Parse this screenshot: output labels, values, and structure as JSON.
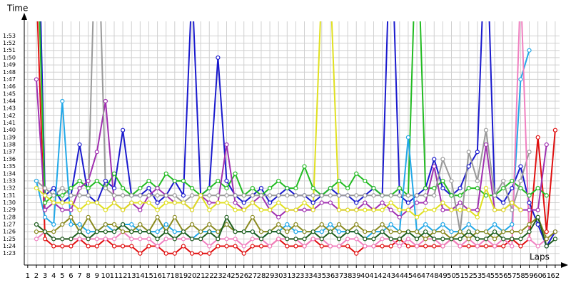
{
  "chart_data": {
    "type": "line",
    "y_label": "Time",
    "x_label": "Laps",
    "x": [
      1,
      2,
      3,
      4,
      5,
      6,
      7,
      8,
      9,
      10,
      11,
      12,
      13,
      14,
      15,
      16,
      17,
      18,
      19,
      20,
      21,
      22,
      23,
      24,
      25,
      26,
      27,
      28,
      29,
      30,
      31,
      32,
      33,
      34,
      35,
      36,
      37,
      38,
      39,
      40,
      41,
      42,
      43,
      44,
      45,
      46,
      47,
      48,
      49,
      50,
      51,
      52,
      53,
      54,
      55,
      56,
      57,
      58,
      59,
      60,
      61,
      62
    ],
    "xlim": [
      0.6,
      63
    ],
    "xticks": [
      1,
      2,
      3,
      4,
      5,
      6,
      7,
      8,
      9,
      10,
      11,
      12,
      13,
      14,
      15,
      16,
      17,
      18,
      19,
      20,
      21,
      22,
      23,
      24,
      25,
      26,
      27,
      28,
      29,
      30,
      31,
      32,
      33,
      34,
      35,
      36,
      37,
      38,
      39,
      40,
      41,
      42,
      43,
      44,
      45,
      46,
      47,
      48,
      49,
      50,
      51,
      52,
      53,
      54,
      55,
      56,
      57,
      58,
      59,
      60,
      61,
      62
    ],
    "ylim": [
      81.4,
      115
    ],
    "yticks": [
      {
        "value": 83,
        "label": "1:23"
      },
      {
        "value": 84,
        "label": "1:24"
      },
      {
        "value": 85,
        "label": "1:25"
      },
      {
        "value": 86,
        "label": "1:26"
      },
      {
        "value": 87,
        "label": "1:27"
      },
      {
        "value": 88,
        "label": "1:28"
      },
      {
        "value": 89,
        "label": "1:29"
      },
      {
        "value": 90,
        "label": "1:30"
      },
      {
        "value": 91,
        "label": "1:31"
      },
      {
        "value": 92,
        "label": "1:32"
      },
      {
        "value": 93,
        "label": "1:33"
      },
      {
        "value": 94,
        "label": "1:34"
      },
      {
        "value": 95,
        "label": "1:35"
      },
      {
        "value": 96,
        "label": "1:36"
      },
      {
        "value": 97,
        "label": "1:37"
      },
      {
        "value": 98,
        "label": "1:38"
      },
      {
        "value": 99,
        "label": "1:39"
      },
      {
        "value": 100,
        "label": "1:40"
      },
      {
        "value": 101,
        "label": "1:41"
      },
      {
        "value": 102,
        "label": "1:42"
      },
      {
        "value": 103,
        "label": "1:43"
      },
      {
        "value": 104,
        "label": "1:44"
      },
      {
        "value": 105,
        "label": "1:45"
      },
      {
        "value": 106,
        "label": "1:46"
      },
      {
        "value": 107,
        "label": "1:47"
      },
      {
        "value": 108,
        "label": "1:48"
      },
      {
        "value": 109,
        "label": "1:49"
      },
      {
        "value": 110,
        "label": "1:50"
      },
      {
        "value": 111,
        "label": "1:51"
      },
      {
        "value": 112,
        "label": "1:52"
      },
      {
        "value": 113,
        "label": "1:53"
      }
    ],
    "grid": true,
    "series": [
      {
        "color": "#1a1acd",
        "values": [
          null,
          140,
          91,
          92,
          90,
          91,
          98,
          91,
          90,
          93,
          92,
          100,
          91,
          91,
          92,
          90,
          91,
          93,
          91,
          120,
          91,
          92,
          110,
          93,
          91,
          90,
          91,
          92,
          90,
          91,
          92,
          91,
          91,
          90,
          91,
          92,
          91,
          91,
          90,
          91,
          92,
          91,
          130,
          91,
          90,
          91,
          92,
          96,
          92,
          91,
          92,
          95,
          97,
          130,
          91,
          90,
          92,
          95,
          90,
          87,
          84,
          86
        ]
      },
      {
        "color": "#e01010",
        "values": [
          null,
          120,
          85,
          84,
          84,
          84,
          85,
          84,
          84,
          85,
          84,
          84,
          84,
          83,
          84,
          84,
          83,
          83,
          84,
          83,
          83,
          83,
          84,
          84,
          84,
          83,
          84,
          84,
          84,
          85,
          84,
          84,
          84,
          85,
          84,
          84,
          84,
          84,
          83,
          84,
          84,
          84,
          84,
          85,
          84,
          84,
          84,
          84,
          84,
          85,
          84,
          84,
          84,
          84,
          84,
          84,
          85,
          84,
          85,
          99,
          86,
          100
        ]
      },
      {
        "color": "#22bb22",
        "values": [
          null,
          130,
          90,
          91,
          91,
          92,
          93,
          92,
          93,
          92,
          94,
          92,
          91,
          92,
          93,
          92,
          94,
          93,
          93,
          92,
          91,
          92,
          93,
          92,
          94,
          91,
          92,
          91,
          92,
          93,
          92,
          92,
          95,
          92,
          91,
          92,
          93,
          92,
          94,
          93,
          92,
          91,
          91,
          92,
          91,
          130,
          92,
          92,
          93,
          91,
          91,
          92,
          92,
          91,
          91,
          92,
          93,
          92,
          91,
          92,
          91,
          null
        ]
      },
      {
        "color": "#a030b0",
        "values": [
          null,
          107,
          89,
          90,
          89,
          89,
          92,
          93,
          97,
          104,
          90,
          89,
          90,
          89,
          91,
          92,
          91,
          90,
          90,
          89,
          91,
          90,
          90,
          98,
          90,
          89,
          90,
          91,
          89,
          88,
          89,
          89,
          89,
          89,
          90,
          90,
          89,
          89,
          89,
          90,
          89,
          90,
          89,
          88,
          89,
          90,
          90,
          95,
          89,
          89,
          90,
          89,
          89,
          98,
          89,
          89,
          90,
          89,
          89,
          89,
          98,
          null
        ]
      },
      {
        "color": "#999999",
        "values": [
          null,
          93,
          92,
          91,
          92,
          91,
          91,
          91,
          135,
          92,
          91,
          91,
          91,
          91,
          91,
          91,
          91,
          91,
          90,
          91,
          91,
          91,
          91,
          91,
          91,
          91,
          91,
          91,
          91,
          91,
          91,
          91,
          91,
          91,
          91,
          91,
          91,
          91,
          91,
          91,
          91,
          91,
          91,
          91,
          91,
          91,
          91,
          91,
          96,
          93,
          86,
          97,
          93,
          100,
          91,
          93,
          89,
          93,
          97,
          null,
          null,
          null
        ]
      },
      {
        "color": "#22a8e8",
        "values": [
          null,
          93,
          88,
          87,
          104,
          87,
          87,
          86,
          86,
          87,
          86,
          87,
          87,
          86,
          86,
          86,
          87,
          86,
          86,
          85,
          86,
          86,
          86,
          87,
          86,
          86,
          86,
          85,
          86,
          86,
          87,
          86,
          86,
          86,
          86,
          87,
          86,
          86,
          86,
          85,
          86,
          86,
          87,
          86,
          99,
          86,
          87,
          86,
          87,
          86,
          86,
          87,
          86,
          86,
          87,
          86,
          87,
          107,
          111,
          null,
          null,
          null
        ]
      },
      {
        "color": "#f080c0",
        "values": [
          null,
          85,
          86,
          85,
          85,
          85,
          85,
          85,
          85,
          85,
          85,
          86,
          85,
          85,
          85,
          84,
          85,
          85,
          85,
          85,
          85,
          84,
          85,
          85,
          85,
          84,
          85,
          85,
          84,
          85,
          85,
          85,
          84,
          85,
          85,
          84,
          84,
          85,
          85,
          84,
          84,
          85,
          85,
          84,
          85,
          84,
          85,
          85,
          84,
          85,
          84,
          85,
          84,
          85,
          84,
          85,
          84,
          120,
          85,
          84,
          85,
          null
        ]
      },
      {
        "color": "#e0e020",
        "values": [
          null,
          92,
          91,
          90,
          90,
          90,
          89,
          90,
          90,
          89,
          90,
          89,
          90,
          90,
          90,
          89,
          90,
          90,
          90,
          89,
          91,
          89,
          90,
          90,
          89,
          89,
          90,
          89,
          89,
          90,
          89,
          89,
          90,
          89,
          120,
          120,
          89,
          89,
          89,
          89,
          89,
          89,
          90,
          89,
          89,
          88,
          89,
          89,
          90,
          89,
          89,
          89,
          88,
          92,
          89,
          89,
          90,
          89,
          null,
          null,
          null,
          null
        ]
      },
      {
        "color": "#8a8a20",
        "values": [
          null,
          86,
          86,
          86,
          87,
          88,
          86,
          88,
          86,
          87,
          87,
          86,
          86,
          87,
          86,
          88,
          86,
          88,
          86,
          87,
          86,
          87,
          86,
          87,
          86,
          86,
          88,
          86,
          86,
          87,
          86,
          87,
          86,
          86,
          87,
          86,
          87,
          86,
          87,
          86,
          86,
          87,
          86,
          86,
          86,
          86,
          85,
          86,
          86,
          85,
          86,
          85,
          86,
          86,
          85,
          86,
          86,
          86,
          87,
          88,
          85,
          86
        ]
      },
      {
        "color": "#1e5e1e",
        "values": [
          null,
          87,
          86,
          85,
          85,
          85,
          86,
          85,
          86,
          86,
          86,
          87,
          86,
          86,
          86,
          85,
          86,
          85,
          86,
          85,
          85,
          86,
          85,
          88,
          86,
          86,
          86,
          85,
          86,
          86,
          85,
          85,
          85,
          86,
          85,
          86,
          85,
          86,
          86,
          85,
          85,
          86,
          85,
          85,
          86,
          85,
          86,
          85,
          85,
          85,
          85,
          86,
          85,
          85,
          86,
          85,
          85,
          85,
          86,
          88,
          84,
          85
        ]
      }
    ]
  }
}
